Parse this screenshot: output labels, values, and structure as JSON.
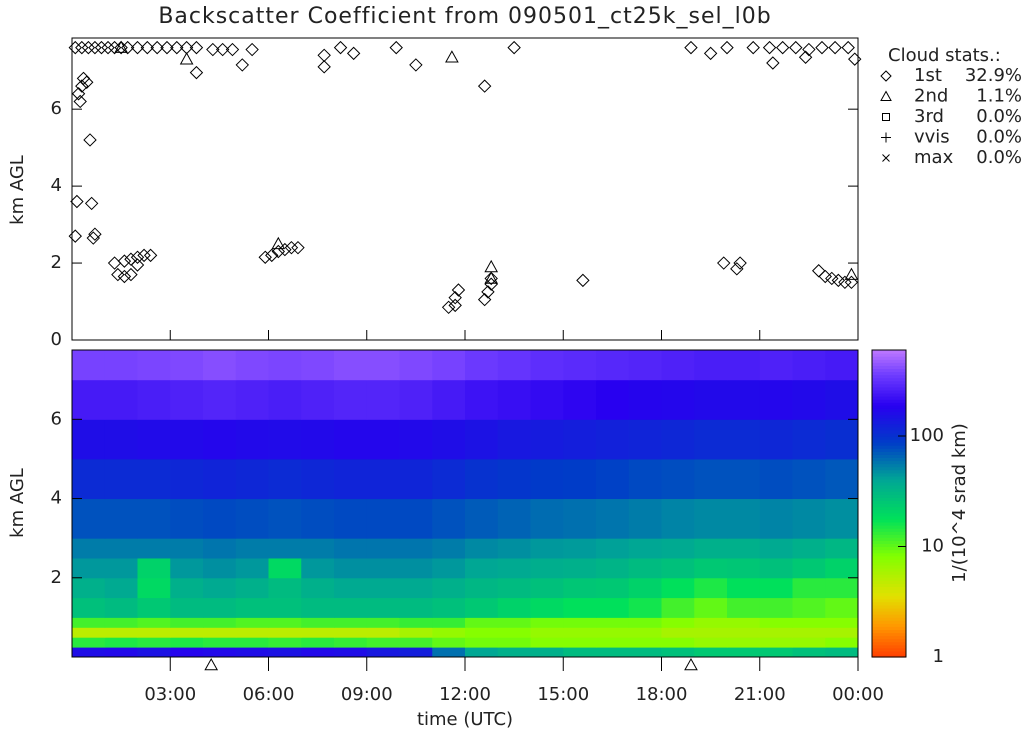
{
  "chart_data": [
    {
      "type": "scatter",
      "title": "Backscatter Coefficient from 090501_ct25k_sel_l0b",
      "ylabel": "km AGL",
      "xlim": [
        0,
        24
      ],
      "ylim": [
        0,
        7.85
      ],
      "yticks": [
        0,
        2,
        4,
        6
      ],
      "legend_title": "Cloud stats.:",
      "series": [
        {
          "name": "1st",
          "stat": "32.9%",
          "marker": "diamond",
          "color": "#000000",
          "x": [
            0.1,
            0.3,
            0.5,
            0.7,
            0.9,
            1.1,
            1.3,
            1.5,
            1.7,
            2.0,
            2.3,
            2.6,
            2.9,
            3.2,
            3.5,
            3.8,
            4.3,
            4.6,
            4.9,
            5.5,
            5.2,
            3.8,
            7.7,
            7.7,
            8.2,
            8.6,
            9.9,
            10.5,
            13.5,
            12.6,
            18.9,
            19.5,
            20.0,
            20.8,
            21.3,
            21.7,
            22.1,
            22.5,
            22.9,
            23.3,
            23.7,
            23.9,
            21.4,
            22.4,
            0.1,
            0.15,
            0.2,
            0.25,
            0.3,
            0.35,
            0.45,
            0.55,
            0.6,
            0.65,
            0.7,
            1.3,
            1.4,
            1.6,
            1.8,
            1.6,
            1.8,
            2.0,
            2.2,
            2.4,
            2.0,
            5.9,
            6.1,
            6.3,
            6.5,
            6.7,
            6.9,
            11.5,
            11.7,
            11.7,
            11.8,
            12.6,
            12.7,
            12.8,
            12.8,
            15.6,
            19.9,
            20.3,
            20.4,
            22.8,
            23.0,
            23.2,
            23.4,
            23.6,
            23.8
          ],
          "y": [
            7.6,
            7.6,
            7.6,
            7.6,
            7.6,
            7.6,
            7.6,
            7.6,
            7.6,
            7.6,
            7.6,
            7.6,
            7.6,
            7.6,
            7.6,
            7.6,
            7.55,
            7.55,
            7.55,
            7.55,
            7.15,
            6.95,
            7.1,
            7.4,
            7.6,
            7.45,
            7.6,
            7.15,
            7.6,
            6.6,
            7.6,
            7.45,
            7.6,
            7.6,
            7.6,
            7.6,
            7.6,
            7.55,
            7.6,
            7.6,
            7.6,
            7.3,
            7.2,
            7.35,
            2.7,
            3.6,
            6.4,
            6.2,
            6.6,
            6.8,
            6.7,
            5.2,
            3.55,
            2.65,
            2.75,
            2.0,
            1.7,
            1.65,
            1.7,
            2.05,
            2.1,
            2.15,
            2.2,
            2.2,
            1.95,
            2.15,
            2.2,
            2.3,
            2.35,
            2.4,
            2.4,
            0.85,
            0.9,
            1.1,
            1.3,
            1.05,
            1.25,
            1.45,
            1.6,
            1.55,
            2.0,
            1.85,
            2.0,
            1.8,
            1.65,
            1.6,
            1.55,
            1.5,
            1.5
          ]
        },
        {
          "name": "2nd",
          "stat": "1.1%",
          "marker": "triangle",
          "color": "#000000",
          "x": [
            1.5,
            3.5,
            11.6,
            6.3,
            12.8,
            12.8,
            23.8
          ],
          "y": [
            7.6,
            7.3,
            7.35,
            2.5,
            1.9,
            1.6,
            1.7
          ]
        },
        {
          "name": "3rd",
          "stat": "0.0%",
          "marker": "square",
          "color": "#000000",
          "x": [],
          "y": []
        },
        {
          "name": "vvis",
          "stat": "0.0%",
          "marker": "plus",
          "color": "#000000",
          "x": [],
          "y": []
        },
        {
          "name": "max",
          "stat": "0.0%",
          "marker": "cross",
          "color": "#000000",
          "x": [],
          "y": []
        }
      ]
    },
    {
      "type": "heatmap",
      "ylabel": "km AGL",
      "xlabel": "time (UTC)",
      "xlim": [
        0,
        24
      ],
      "ylim": [
        0,
        7.75
      ],
      "yticks": [
        2,
        4,
        6
      ],
      "xticks": [
        {
          "value": 3,
          "label": "03:00"
        },
        {
          "value": 6,
          "label": "06:00"
        },
        {
          "value": 9,
          "label": "09:00"
        },
        {
          "value": 12,
          "label": "12:00"
        },
        {
          "value": 15,
          "label": "15:00"
        },
        {
          "value": 18,
          "label": "18:00"
        },
        {
          "value": 21,
          "label": "21:00"
        },
        {
          "value": 24,
          "label": "00:00"
        }
      ],
      "event_x": [
        4.25,
        18.9
      ],
      "colorbar_label": "1/(10^4 srad km)",
      "zscale": "log",
      "zlim": [
        1,
        600
      ],
      "zticks": [
        1,
        10,
        100
      ],
      "xbins": [
        0,
        1,
        2,
        3,
        4,
        5,
        6,
        7,
        8,
        9,
        10,
        11,
        12,
        13,
        14,
        15,
        16,
        17,
        18,
        19,
        20,
        21,
        22,
        23,
        24
      ],
      "ybins": [
        0,
        0.25,
        0.5,
        0.75,
        1,
        1.5,
        2,
        2.5,
        3,
        4,
        5,
        6,
        7,
        7.75
      ],
      "values": [
        [
          160,
          170,
          150,
          180,
          170,
          160,
          150,
          170,
          160,
          140,
          130,
          60,
          40,
          35,
          35,
          30,
          30,
          30,
          28,
          25,
          25,
          25,
          28,
          30
        ],
        [
          14,
          15,
          14,
          15,
          14,
          14,
          13,
          14,
          13,
          12,
          12,
          10,
          9,
          9,
          8,
          8,
          8,
          8,
          8,
          7,
          7,
          7,
          7,
          8
        ],
        [
          5,
          5,
          5,
          5,
          5,
          5,
          5,
          5,
          5,
          5,
          6,
          7,
          8,
          8,
          7,
          7,
          7,
          7,
          6,
          6,
          6,
          6,
          6,
          6
        ],
        [
          12,
          12,
          11,
          12,
          12,
          11,
          11,
          12,
          12,
          12,
          13,
          13,
          10,
          10,
          9,
          9,
          9,
          9,
          8,
          7,
          7,
          8,
          8,
          8
        ],
        [
          28,
          30,
          25,
          30,
          30,
          28,
          28,
          30,
          30,
          30,
          30,
          28,
          25,
          22,
          20,
          18,
          18,
          16,
          12,
          10,
          12,
          12,
          11,
          10
        ],
        [
          35,
          38,
          20,
          35,
          38,
          35,
          30,
          35,
          38,
          38,
          38,
          35,
          32,
          30,
          28,
          26,
          25,
          22,
          18,
          15,
          18,
          18,
          14,
          14
        ],
        [
          45,
          45,
          22,
          45,
          48,
          45,
          20,
          45,
          48,
          48,
          48,
          45,
          40,
          38,
          36,
          35,
          33,
          30,
          28,
          25,
          26,
          28,
          25,
          22
        ],
        [
          55,
          55,
          55,
          55,
          58,
          55,
          55,
          55,
          58,
          58,
          58,
          55,
          50,
          48,
          45,
          44,
          42,
          40,
          38,
          35,
          35,
          38,
          35,
          32
        ],
        [
          75,
          75,
          75,
          78,
          80,
          78,
          75,
          78,
          80,
          80,
          80,
          75,
          70,
          66,
          62,
          60,
          58,
          55,
          52,
          50,
          50,
          52,
          50,
          48
        ],
        [
          110,
          110,
          110,
          115,
          120,
          115,
          110,
          115,
          120,
          120,
          118,
          110,
          100,
          95,
          90,
          88,
          85,
          80,
          78,
          75,
          75,
          78,
          75,
          72
        ],
        [
          160,
          160,
          165,
          170,
          175,
          170,
          165,
          170,
          175,
          175,
          170,
          160,
          150,
          140,
          135,
          130,
          125,
          120,
          115,
          110,
          110,
          115,
          110,
          105
        ],
        [
          250,
          250,
          260,
          270,
          280,
          270,
          260,
          270,
          280,
          280,
          270,
          250,
          230,
          220,
          210,
          200,
          190,
          180,
          175,
          170,
          170,
          175,
          170,
          160
        ],
        [
          380,
          380,
          390,
          400,
          420,
          400,
          390,
          400,
          420,
          420,
          400,
          380,
          350,
          330,
          310,
          300,
          290,
          280,
          270,
          260,
          260,
          270,
          260,
          250
        ]
      ]
    }
  ]
}
